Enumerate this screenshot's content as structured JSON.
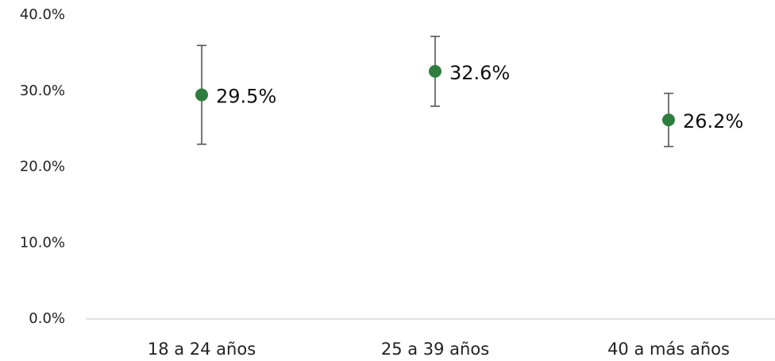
{
  "chart_data": {
    "type": "scatter",
    "categories": [
      "18 a 24 años",
      "25 a 39 años",
      "40 a más años"
    ],
    "values": [
      29.5,
      32.6,
      26.2
    ],
    "error_low": [
      23.0,
      28.0,
      22.7
    ],
    "error_high": [
      36.0,
      37.2,
      29.7
    ],
    "data_labels": [
      "29.5%",
      "32.6%",
      "26.2%"
    ],
    "y_ticks": [
      0,
      10,
      20,
      30,
      40
    ],
    "y_tick_labels": [
      "0.0%",
      "10.0%",
      "20.0%",
      "30.0%",
      "40.0%"
    ],
    "ylim": [
      0,
      40
    ],
    "grid": false,
    "legend": "none",
    "colors": {
      "marker": "#2e7d3e",
      "error_bar": "#555555",
      "axis_line": "#d9d9d9"
    }
  }
}
